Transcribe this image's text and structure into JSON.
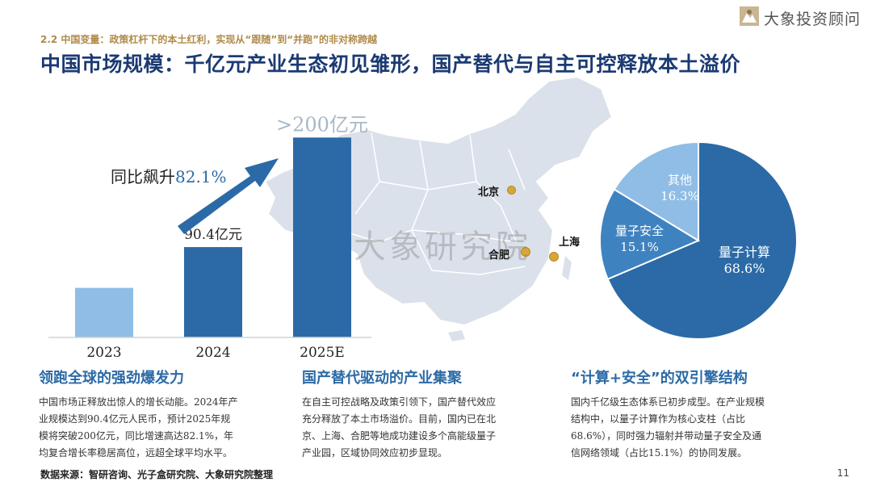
{
  "header": {
    "section_tag": "2.2 中国变量：政策杠杆下的本土红利，实现从“跟随”到“并跑”的非对称跨越",
    "title": "中国市场规模：千亿元产业生态初见雏形，国产替代与自主可控释放本土溢价",
    "brand": "大象投资顾问",
    "brand_icon": "elephant-logo-icon"
  },
  "watermark": {
    "text": "大象研究院"
  },
  "chart_data": [
    {
      "type": "bar",
      "categories": [
        "2023",
        "2024",
        "2025E"
      ],
      "values": [
        49.6,
        90.4,
        200
      ],
      "data_labels": [
        "",
        "90.4亿元",
        ">200亿元"
      ],
      "annotation": "同比飙升",
      "annotation_value": "82.1%",
      "ylim": [
        0,
        210
      ],
      "colors": {
        "bar": "#2b6aa6",
        "bar_light": "#8fbde6",
        "arrow": "#2b6aa6"
      }
    },
    {
      "type": "pie",
      "slices": [
        {
          "label": "量子计算",
          "value": 68.6,
          "value_label": "68.6%",
          "color": "#2b6aa6"
        },
        {
          "label": "量子安全",
          "value": 15.1,
          "value_label": "15.1%",
          "color": "#3f82c0"
        },
        {
          "label": "其他",
          "value": 16.3,
          "value_label": "16.3%",
          "color": "#8fbde6"
        }
      ]
    }
  ],
  "map": {
    "cities": [
      {
        "name": "北京"
      },
      {
        "name": "上海"
      },
      {
        "name": "合肥"
      }
    ],
    "marker_color": "#d8a637"
  },
  "columns": [
    {
      "title": "领跑全球的强劲爆发力",
      "lines": [
        "中国市场正释放出惊人的增长动能。2024年产",
        "业规模达到90.4亿元人民币，预计2025年规",
        "模将突破200亿元，同比增速高达82.1%，年",
        "均复合增长率稳居高位，远超全球平均水平。"
      ]
    },
    {
      "title": "国产替代驱动的产业集聚",
      "lines": [
        "在自主可控战略及政策引领下，国产替代效应",
        "充分释放了本土市场溢价。目前，国内已在北",
        "京、上海、合肥等地成功建设多个高能级量子",
        "产业园，区域协同效应初步显现。"
      ]
    },
    {
      "title": "“计算+安全”的双引擎结构",
      "lines": [
        "国内千亿级生态体系已初步成型。在产业规模",
        "结构中，以量子计算作为核心支柱（占比",
        "68.6%），同时强力辐射并带动量子安全及通",
        "信网络领域（占比15.1%）的协同发展。"
      ]
    }
  ],
  "footer": {
    "source": "数据来源：智研咨询、光子盒研究院、大象研究院整理",
    "page_number": "11"
  }
}
